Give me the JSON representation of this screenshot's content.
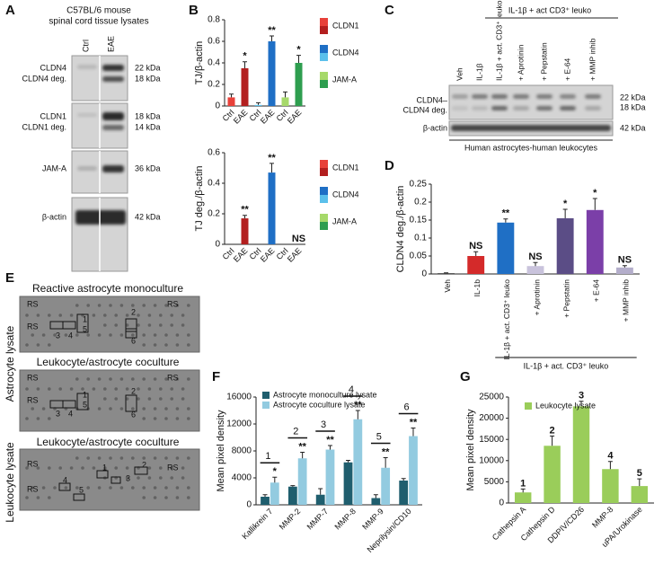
{
  "panel_letters": [
    "A",
    "B",
    "C",
    "D",
    "E",
    "F",
    "G"
  ],
  "blot_a": {
    "title": [
      "C57BL/6 mouse",
      "spinal cord tissue lysates"
    ],
    "lanes": [
      "Ctrl",
      "EAE"
    ],
    "rows": [
      {
        "labels": [
          "CLDN4",
          "CLDN4 deg."
        ],
        "sizes": [
          "22 kDa",
          "18 kDa"
        ]
      },
      {
        "labels": [
          "CLDN1",
          "CLDN1 deg."
        ],
        "sizes": [
          "18 kDa",
          "14 kDa"
        ]
      },
      {
        "labels": [
          "JAM-A"
        ],
        "sizes": [
          "36 kDa"
        ]
      },
      {
        "labels": [
          "β-actin"
        ],
        "sizes": [
          "42 kDa"
        ]
      }
    ]
  },
  "blot_c": {
    "header": "IL-1β + act CD3⁺ leuko",
    "lanes": [
      "Veh",
      "IL-1β",
      "IL-1β + act. CD3⁺ leuko",
      "+ Aprotinin",
      "+ Pepstatin",
      "+ E-64",
      "+ MMP inhib"
    ],
    "rows": [
      {
        "labels": [
          "CLDN4–",
          "CLDN4 deg."
        ],
        "sizes": [
          "22 kDa",
          "18 kDa"
        ]
      },
      {
        "labels": [
          "β-actin"
        ],
        "sizes": [
          "42 kDa"
        ]
      }
    ],
    "footer": "Human astrocytes-human leukocytes"
  },
  "arrays": {
    "side_labels": [
      "Astrocyte lysate",
      "Leukocyte lysate"
    ],
    "items": [
      {
        "title": "Reactive astrocyte monoculture",
        "labels": [
          "RS",
          "RS",
          "RS",
          "1",
          "5",
          "3",
          "4",
          "2",
          "6"
        ]
      },
      {
        "title": "Leukocyte/astrocyte coculture",
        "labels": [
          "RS",
          "RS",
          "RS",
          "1",
          "5",
          "3",
          "4",
          "2",
          "6"
        ]
      },
      {
        "title": "Leukocyte/astrocyte coculture",
        "labels": [
          "RS",
          "RS",
          "RS",
          "1",
          "2",
          "3",
          "4",
          "5"
        ]
      }
    ]
  },
  "chart_data": [
    {
      "type": "bar",
      "y_label": "TJ/β-actin",
      "categories": [
        "Ctrl",
        "EAE",
        "Ctrl",
        "EAE",
        "Ctrl",
        "EAE"
      ],
      "values": [
        0.08,
        0.35,
        0.01,
        0.6,
        0.08,
        0.4
      ],
      "errors": [
        0.03,
        0.06,
        0.02,
        0.05,
        0.05,
        0.07
      ],
      "annotations": [
        null,
        "*",
        null,
        "**",
        null,
        "*"
      ],
      "colors": [
        "#e8413a",
        "#b31f1f",
        "#5bc0eb",
        "#1f6fc5",
        "#a6d96a",
        "#2e9e4f"
      ],
      "legend": [
        {
          "name": "CLDN1",
          "colors": [
            "#e8413a",
            "#b31f1f"
          ]
        },
        {
          "name": "CLDN4",
          "colors": [
            "#1f6fc5",
            "#5bc0eb"
          ]
        },
        {
          "name": "JAM-A",
          "colors": [
            "#a6d96a",
            "#2e9e4f"
          ]
        }
      ],
      "ylim": [
        0,
        0.8
      ],
      "yticks": [
        0,
        0.2,
        0.4,
        0.6,
        0.8
      ]
    },
    {
      "type": "bar",
      "y_label": "TJ deg./β-actin",
      "categories": [
        "Ctrl",
        "EAE",
        "Ctrl",
        "EAE",
        "Ctrl",
        "EAE"
      ],
      "values": [
        0,
        0.17,
        0,
        0.47,
        0,
        0
      ],
      "errors": [
        0,
        0.02,
        0,
        0.06,
        0,
        0
      ],
      "annotations": [
        null,
        "**",
        null,
        "**",
        null,
        "NS"
      ],
      "colors": [
        "#e8413a",
        "#b31f1f",
        "#5bc0eb",
        "#1f6fc5",
        "#a6d96a",
        "#2e9e4f"
      ],
      "legend": [
        {
          "name": "CLDN1",
          "colors": [
            "#e8413a",
            "#b31f1f"
          ]
        },
        {
          "name": "CLDN4",
          "colors": [
            "#1f6fc5",
            "#5bc0eb"
          ]
        },
        {
          "name": "JAM-A",
          "colors": [
            "#a6d96a",
            "#2e9e4f"
          ]
        }
      ],
      "ylim": [
        0,
        0.6
      ],
      "yticks": [
        0,
        0.2,
        0.4,
        0.6
      ]
    },
    {
      "type": "bar",
      "y_label": "CLDN4 deg./β-actin",
      "categories": [
        "Veh",
        "IL-1b",
        "IL-1β + act. CD3⁺ leuko",
        "+ Aprotinin",
        "+ Pepstatin",
        "+ E-64",
        "+ MMP inhib"
      ],
      "values": [
        0.002,
        0.05,
        0.143,
        0.022,
        0.155,
        0.178,
        0.018
      ],
      "errors": [
        0.001,
        0.012,
        0.01,
        0.01,
        0.025,
        0.032,
        0.005
      ],
      "annotations": [
        null,
        "NS",
        "**",
        "NS",
        "*",
        "*",
        "NS"
      ],
      "colors": [
        "#333333",
        "#d42a2a",
        "#1f6fc5",
        "#c9c3dc",
        "#5b4d86",
        "#7b3fa8",
        "#b4aecb"
      ],
      "bracket_label": "IL-1β + act. CD3⁺ leuko",
      "ylim": [
        0,
        0.25
      ],
      "yticks": [
        0,
        0.05,
        0.1,
        0.15,
        0.2,
        0.25
      ]
    },
    {
      "type": "bar",
      "y_label": "Mean pixel density",
      "categories": [
        "Kallikrein 7",
        "MMP-2",
        "MMP-7",
        "MMP-8",
        "MMP-9",
        "Neprilysin/CD10"
      ],
      "group_labels": [
        "1",
        "2",
        "3",
        "4",
        "5",
        "6"
      ],
      "series": [
        {
          "name": "Astrocyte monoculture lysate",
          "color": "#1f5e6e",
          "values": [
            1200,
            2700,
            1500,
            6300,
            1000,
            3600
          ],
          "errors": [
            300,
            150,
            900,
            300,
            500,
            300
          ]
        },
        {
          "name": "Astrocyte coculture lysate",
          "color": "#93cbe0",
          "values": [
            3300,
            6900,
            8200,
            12700,
            5500,
            10200
          ],
          "errors": [
            800,
            900,
            600,
            1300,
            1500,
            1200
          ],
          "annotations": [
            "*",
            "**",
            "**",
            "**",
            "**",
            "**"
          ]
        }
      ],
      "ylim": [
        0,
        16000
      ],
      "yticks": [
        0,
        4000,
        8000,
        12000,
        16000
      ]
    },
    {
      "type": "bar",
      "y_label": "Mean pixel density",
      "categories": [
        "Cathepsin A",
        "Cathepsin D",
        "DDPIV/CD26",
        "MMP-8",
        "uPA/Urokinase"
      ],
      "series": [
        {
          "name": "Leukocyte lysate",
          "color": "#9acd5a",
          "values": [
            2500,
            13500,
            22800,
            8000,
            4000
          ],
          "errors": [
            800,
            2300,
            1200,
            1800,
            1700
          ],
          "annotations": [
            "1",
            "2",
            "3",
            "4",
            "5"
          ]
        }
      ],
      "ylim": [
        0,
        25000
      ],
      "yticks": [
        0,
        5000,
        10000,
        15000,
        20000,
        25000
      ]
    }
  ]
}
